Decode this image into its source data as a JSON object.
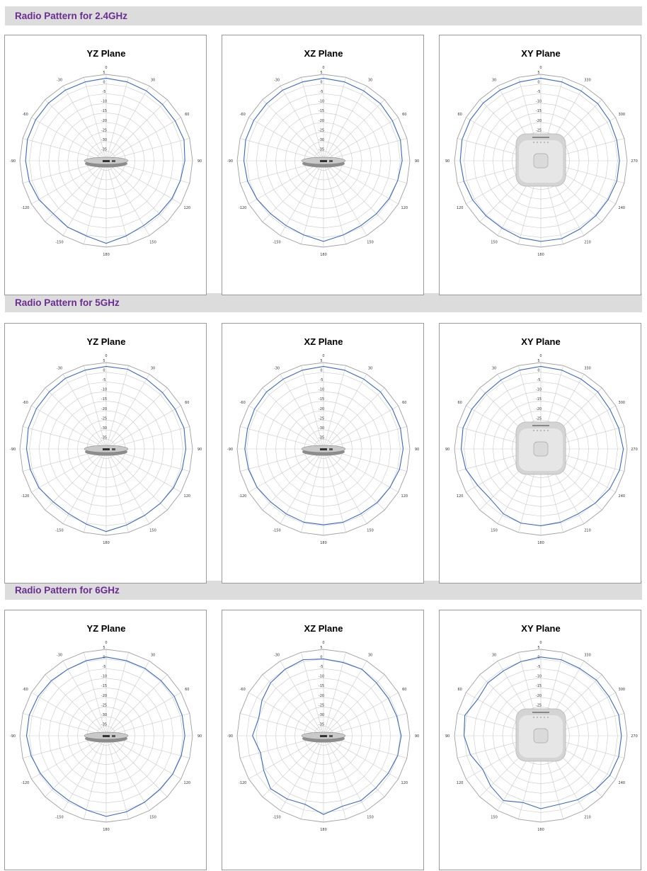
{
  "sections": [
    {
      "title": "Radio Pattern for 2.4GHz"
    },
    {
      "title": "Radio Pattern for 5GHz"
    },
    {
      "title": "Radio Pattern for 6GHz"
    }
  ],
  "colors": {
    "trace": "#3a68c2",
    "grid": "#c9c9c9",
    "title": "#6a2c91",
    "bar": "#dcdcdc"
  },
  "chart_data": [
    {
      "type": "polar",
      "section": "Radio Pattern for 2.4GHz",
      "title": "YZ Plane",
      "device": "side",
      "angle_labels": [
        "0",
        "30",
        "60",
        "90",
        "120",
        "150",
        "180",
        "-150",
        "-120",
        "-90",
        "-60",
        "-30"
      ],
      "radial_labels": [
        "5",
        "0",
        "-5",
        "-10",
        "-15",
        "-20",
        "-25",
        "-30",
        "-35"
      ],
      "rlim": [
        -40,
        5
      ],
      "series": [
        {
          "angles_deg": [
            0,
            15,
            30,
            45,
            60,
            75,
            90,
            105,
            120,
            135,
            150,
            165,
            180,
            195,
            210,
            225,
            240,
            255,
            270,
            285,
            300,
            315,
            330,
            345
          ],
          "values": [
            3,
            2.5,
            2,
            1.5,
            1.5,
            2,
            1,
            0,
            -0.5,
            -1,
            -1,
            0.5,
            3,
            0.5,
            0,
            -1,
            0.5,
            1.5,
            2,
            2.5,
            2.5,
            2.5,
            2.5,
            2.5
          ]
        }
      ]
    },
    {
      "type": "polar",
      "section": "Radio Pattern for 2.4GHz",
      "title": "XZ Plane",
      "device": "side",
      "angle_labels": [
        "0",
        "30",
        "60",
        "90",
        "120",
        "150",
        "180",
        "-150",
        "-120",
        "-90",
        "-60",
        "-30"
      ],
      "radial_labels": [
        "5",
        "0",
        "-5",
        "-10",
        "-15",
        "-20",
        "-25",
        "-30",
        "-35"
      ],
      "rlim": [
        -40,
        5
      ],
      "series": [
        {
          "angles_deg": [
            0,
            15,
            30,
            45,
            60,
            75,
            90,
            105,
            120,
            135,
            150,
            165,
            180,
            195,
            210,
            225,
            240,
            255,
            270,
            285,
            300,
            315,
            330,
            345
          ],
          "values": [
            3,
            2.5,
            2,
            2,
            1.5,
            1.5,
            1,
            0,
            -0.5,
            -1,
            -1,
            0,
            2,
            0,
            -1,
            -1,
            0,
            1,
            1.5,
            2,
            2,
            2,
            2.5,
            2.5
          ]
        }
      ]
    },
    {
      "type": "polar",
      "section": "Radio Pattern for 2.4GHz",
      "title": "XY Plane",
      "device": "top",
      "angle_labels": [
        "0",
        "330",
        "300",
        "270",
        "240",
        "210",
        "180",
        "150",
        "120",
        "90",
        "60",
        "30"
      ],
      "radial_labels": [
        "5",
        "0",
        "-5",
        "-10",
        "-15",
        "-20",
        "-25"
      ],
      "rlim": [
        -40,
        5
      ],
      "series": [
        {
          "angles_deg": [
            0,
            15,
            30,
            45,
            60,
            75,
            90,
            105,
            120,
            135,
            150,
            165,
            180,
            195,
            210,
            225,
            240,
            255,
            270,
            285,
            300,
            315,
            330,
            345
          ],
          "values": [
            3,
            2.5,
            2,
            2,
            1.5,
            1,
            1,
            1,
            0.5,
            0.5,
            1,
            2,
            2,
            1.5,
            0.5,
            0.5,
            1,
            1.5,
            2,
            2.5,
            2.5,
            2.5,
            2.5,
            2.5
          ]
        }
      ]
    },
    {
      "type": "polar",
      "section": "Radio Pattern for 5GHz",
      "title": "YZ Plane",
      "device": "side",
      "angle_labels": [
        "0",
        "30",
        "60",
        "90",
        "120",
        "150",
        "180",
        "-150",
        "-120",
        "-90",
        "-60",
        "-30"
      ],
      "radial_labels": [
        "5",
        "0",
        "-5",
        "-10",
        "-15",
        "-20",
        "-25",
        "-30",
        "-35"
      ],
      "rlim": [
        -40,
        5
      ],
      "series": [
        {
          "angles_deg": [
            0,
            15,
            30,
            45,
            60,
            75,
            90,
            105,
            120,
            135,
            150,
            165,
            180,
            195,
            210,
            225,
            240,
            255,
            270,
            285,
            300,
            315,
            330,
            345
          ],
          "values": [
            3,
            3,
            2,
            1.5,
            1.5,
            2,
            1.5,
            1,
            0.5,
            0,
            0,
            1,
            3,
            0.5,
            -1,
            -1,
            0.5,
            1,
            1.5,
            2,
            2,
            2,
            2.5,
            2.5
          ]
        }
      ]
    },
    {
      "type": "polar",
      "section": "Radio Pattern for 5GHz",
      "title": "XZ Plane",
      "device": "side",
      "angle_labels": [
        "0",
        "30",
        "60",
        "90",
        "120",
        "150",
        "180",
        "-150",
        "-120",
        "-90",
        "-60",
        "-30"
      ],
      "radial_labels": [
        "5",
        "0",
        "-5",
        "-10",
        "-15",
        "-20",
        "-25",
        "-30",
        "-35"
      ],
      "rlim": [
        -40,
        5
      ],
      "series": [
        {
          "angles_deg": [
            0,
            15,
            30,
            45,
            60,
            75,
            90,
            105,
            120,
            135,
            150,
            165,
            180,
            195,
            210,
            225,
            240,
            255,
            270,
            285,
            300,
            315,
            330,
            345
          ],
          "values": [
            3,
            2.5,
            2,
            2,
            1.5,
            1.5,
            1.5,
            1,
            0,
            -0.5,
            -1,
            -0.5,
            -0.5,
            -0.5,
            -1,
            -1,
            0,
            0.5,
            1,
            1,
            1.5,
            2,
            2,
            2.5
          ]
        }
      ]
    },
    {
      "type": "polar",
      "section": "Radio Pattern for 5GHz",
      "title": "XY Plane",
      "device": "top",
      "angle_labels": [
        "0",
        "330",
        "300",
        "270",
        "240",
        "210",
        "180",
        "150",
        "120",
        "90",
        "60",
        "30"
      ],
      "radial_labels": [
        "5",
        "0",
        "-5",
        "-10",
        "-15",
        "-20",
        "-25"
      ],
      "rlim": [
        -40,
        5
      ],
      "series": [
        {
          "angles_deg": [
            0,
            15,
            30,
            45,
            60,
            75,
            90,
            105,
            120,
            135,
            150,
            165,
            180,
            195,
            210,
            225,
            240,
            255,
            270,
            285,
            300,
            315,
            330,
            345
          ],
          "values": [
            3,
            2.5,
            2,
            2,
            1.5,
            2,
            3,
            2.5,
            1.5,
            0,
            -1,
            -0.5,
            0,
            0,
            -1,
            -3,
            -2,
            0.5,
            1.5,
            2,
            1.5,
            1,
            1.5,
            2.5
          ]
        }
      ]
    },
    {
      "type": "polar",
      "section": "Radio Pattern for 6GHz",
      "title": "YZ Plane",
      "device": "side",
      "angle_labels": [
        "0",
        "30",
        "60",
        "90",
        "120",
        "150",
        "180",
        "-150",
        "-120",
        "-90",
        "-60",
        "-30"
      ],
      "radial_labels": [
        "5",
        "0",
        "-5",
        "-10",
        "-15",
        "-20",
        "-25",
        "-30",
        "-35"
      ],
      "rlim": [
        -40,
        5
      ],
      "series": [
        {
          "angles_deg": [
            0,
            15,
            30,
            45,
            60,
            75,
            90,
            105,
            120,
            135,
            150,
            165,
            180,
            195,
            210,
            225,
            240,
            255,
            270,
            285,
            300,
            315,
            330,
            345
          ],
          "values": [
            1,
            0.5,
            0.5,
            0.5,
            1,
            1,
            1,
            0.5,
            0,
            -0.5,
            0,
            1,
            2,
            0,
            -1,
            -1,
            -0.5,
            0.5,
            1.5,
            1.5,
            1,
            0.5,
            0,
            0.5
          ]
        }
      ]
    },
    {
      "type": "polar",
      "section": "Radio Pattern for 6GHz",
      "title": "XZ Plane",
      "device": "side",
      "angle_labels": [
        "0",
        "30",
        "60",
        "90",
        "120",
        "150",
        "180",
        "-150",
        "-120",
        "-90",
        "-60",
        "-30"
      ],
      "radial_labels": [
        "5",
        "0",
        "-5",
        "-10",
        "-15",
        "-20",
        "-25",
        "-30",
        "-35"
      ],
      "rlim": [
        -40,
        5
      ],
      "series": [
        {
          "angles_deg": [
            0,
            15,
            30,
            45,
            60,
            75,
            90,
            105,
            120,
            135,
            150,
            165,
            180,
            195,
            210,
            225,
            240,
            255,
            270,
            285,
            300,
            315,
            330,
            345
          ],
          "values": [
            0,
            -0.5,
            0,
            -1,
            -1,
            -0.5,
            0.5,
            0,
            -1,
            -1.5,
            -1,
            -2,
            1,
            -3,
            -2,
            -1,
            -4,
            -6,
            -3,
            -5,
            -3,
            -1,
            0,
            1
          ]
        }
      ]
    },
    {
      "type": "polar",
      "section": "Radio Pattern for 6GHz",
      "title": "XY Plane",
      "device": "top",
      "angle_labels": [
        "0",
        "330",
        "300",
        "270",
        "240",
        "210",
        "180",
        "150",
        "120",
        "90",
        "60",
        "30"
      ],
      "radial_labels": [
        "5",
        "0",
        "-5",
        "-10",
        "-15",
        "-20",
        "-25"
      ],
      "rlim": [
        -40,
        5
      ],
      "series": [
        {
          "angles_deg": [
            0,
            15,
            30,
            45,
            60,
            75,
            90,
            105,
            120,
            135,
            150,
            165,
            180,
            195,
            210,
            225,
            240,
            255,
            270,
            285,
            300,
            315,
            330,
            345
          ],
          "values": [
            1,
            1,
            0.5,
            1,
            1,
            2,
            2,
            2,
            1.5,
            0,
            -1.5,
            -3,
            -2,
            -4,
            -1,
            -3,
            -5,
            -2,
            0,
            1,
            -2,
            -1,
            -1,
            0
          ]
        }
      ]
    }
  ]
}
